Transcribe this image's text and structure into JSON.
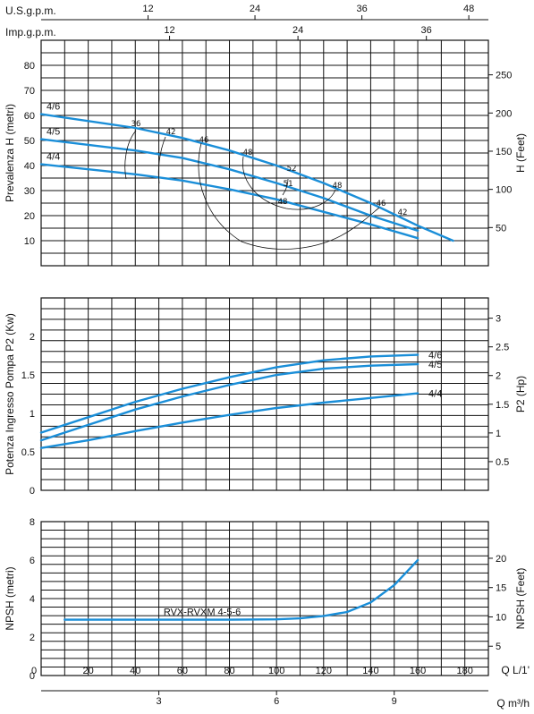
{
  "chart_data": [
    {
      "type": "line",
      "name_panel": "head",
      "ylabel": "Prevalenza H (metri)",
      "ylabel_right": "H (Feet)",
      "yticks": [
        10,
        20,
        30,
        40,
        50,
        60,
        70,
        80
      ],
      "yticks_right": [
        50,
        100,
        150,
        200,
        250
      ],
      "xlim": [
        0,
        190
      ],
      "ylim": [
        0,
        90
      ],
      "grid": true,
      "top_axes": [
        {
          "label": "U.S.g.p.m.",
          "ticks": [
            "12",
            "24",
            "36",
            "48"
          ]
        },
        {
          "label": "Imp.g.p.m.",
          "ticks": [
            "12",
            "24",
            "36"
          ]
        }
      ],
      "series": [
        {
          "name": "4/6",
          "x": [
            0,
            40,
            60,
            80,
            100,
            120,
            140,
            160,
            175
          ],
          "y": [
            60.5,
            55,
            51,
            46,
            40,
            33,
            25,
            16,
            10
          ]
        },
        {
          "name": "4/5",
          "x": [
            0,
            40,
            60,
            80,
            100,
            120,
            140,
            160
          ],
          "y": [
            50.5,
            46,
            43,
            38.5,
            33,
            27,
            20,
            14
          ]
        },
        {
          "name": "4/4",
          "x": [
            0,
            40,
            60,
            80,
            100,
            120,
            140,
            160
          ],
          "y": [
            40.5,
            36.5,
            34,
            30.5,
            26.5,
            21.5,
            16.5,
            11
          ]
        }
      ],
      "efficiency_labels": [
        "36",
        "42",
        "46",
        "48",
        "52",
        "51",
        "48",
        "48",
        "46",
        "42"
      ]
    },
    {
      "type": "line",
      "name_panel": "power",
      "ylabel": "Potenza Ingresso Pompa P2 (Kw)",
      "ylabel_right": "P2 (Hp)",
      "yticks": [
        0,
        0.5,
        1,
        1.5,
        2
      ],
      "yticks_right": [
        0.5,
        1,
        1.5,
        2,
        2.5,
        3
      ],
      "xlim": [
        0,
        190
      ],
      "ylim": [
        0,
        2.5
      ],
      "grid": true,
      "series": [
        {
          "name": "4/6",
          "x": [
            0,
            20,
            40,
            60,
            80,
            100,
            120,
            140,
            160
          ],
          "y": [
            0.75,
            0.95,
            1.15,
            1.32,
            1.47,
            1.6,
            1.69,
            1.74,
            1.76
          ]
        },
        {
          "name": "4/5",
          "x": [
            0,
            20,
            40,
            60,
            80,
            100,
            120,
            140,
            160
          ],
          "y": [
            0.65,
            0.85,
            1.05,
            1.22,
            1.37,
            1.5,
            1.58,
            1.62,
            1.64
          ]
        },
        {
          "name": "4/4",
          "x": [
            0,
            20,
            40,
            60,
            80,
            100,
            120,
            140,
            160
          ],
          "y": [
            0.55,
            0.65,
            0.77,
            0.88,
            0.98,
            1.07,
            1.14,
            1.2,
            1.26
          ]
        }
      ]
    },
    {
      "type": "line",
      "name_panel": "npsh",
      "ylabel": "NPSH (metri)",
      "ylabel_right": "NPSH (Feet)",
      "yticks": [
        0,
        2,
        4,
        6,
        8
      ],
      "yticks_right": [
        5,
        10,
        15,
        20
      ],
      "xlim": [
        0,
        190
      ],
      "ylim": [
        0,
        8
      ],
      "grid": true,
      "xlabel": "Q L/1'",
      "xticks": [
        "20",
        "40",
        "60",
        "80",
        "100",
        "120",
        "140",
        "160",
        "180"
      ],
      "xlabel2": "Q m³/h",
      "xticks2": [
        "3",
        "6",
        "9"
      ],
      "series": [
        {
          "name": "RVX-RVXM 4-5-6",
          "x": [
            10,
            40,
            80,
            100,
            110,
            120,
            130,
            140,
            150,
            160
          ],
          "y": [
            2.9,
            2.9,
            2.9,
            2.92,
            2.97,
            3.1,
            3.3,
            3.8,
            4.7,
            6.0
          ]
        }
      ]
    }
  ]
}
